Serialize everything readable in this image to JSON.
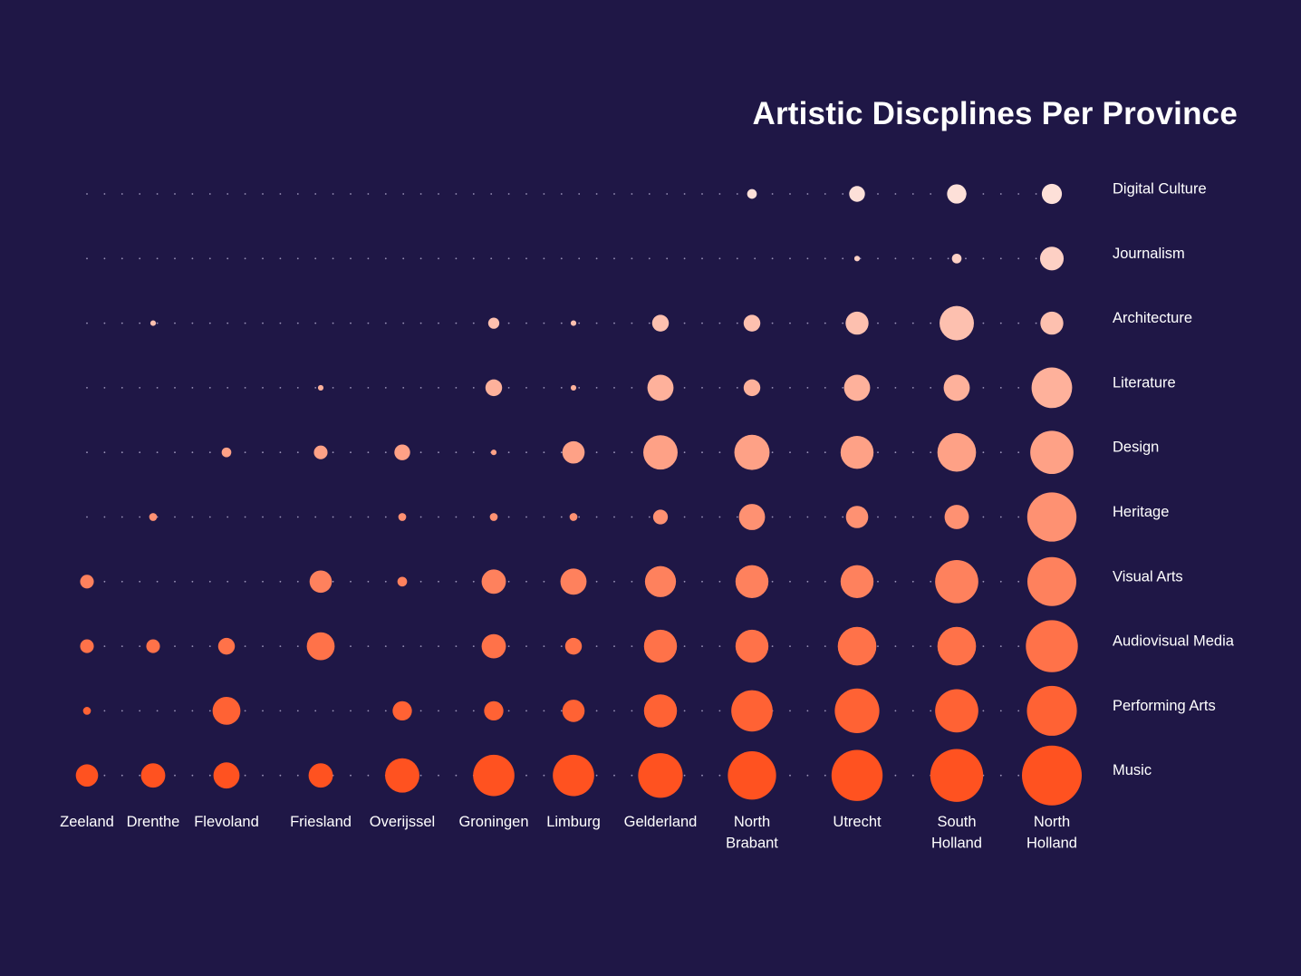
{
  "colors": {
    "background": "#1f1746",
    "dot_grid": "#9a93b8",
    "scale_light": "#fde0d8",
    "scale_dark": "#ff5220",
    "text": "#ffffff"
  },
  "chart_data": {
    "type": "bubble-matrix",
    "title": "Artistic Discplines Per Province",
    "columns": [
      "Zeeland",
      "Drenthe",
      "Flevoland",
      "Friesland",
      "Overijssel",
      "Groningen",
      "Limburg",
      "Gelderland",
      "North Brabant",
      "Utrecht",
      "South Holland",
      "North Holland"
    ],
    "rows": [
      "Digital Culture",
      "Journalism",
      "Architecture",
      "Literature",
      "Design",
      "Heritage",
      "Visual Arts",
      "Audiovisual Media",
      "Performing Arts",
      "Music"
    ],
    "values": [
      [
        0,
        0,
        0,
        0,
        0,
        0,
        0,
        0,
        3,
        8,
        12,
        13
      ],
      [
        0,
        0,
        0,
        0,
        0,
        0,
        0,
        0,
        0,
        1,
        3,
        18
      ],
      [
        0,
        1,
        0,
        0,
        0,
        4,
        1,
        9,
        9,
        17,
        38,
        17
      ],
      [
        0,
        0,
        0,
        1,
        0,
        9,
        1,
        22,
        9,
        22,
        22,
        53
      ],
      [
        0,
        0,
        3,
        6,
        8,
        1,
        16,
        38,
        40,
        35,
        48,
        60
      ],
      [
        0,
        2,
        0,
        0,
        2,
        2,
        2,
        7,
        22,
        16,
        19,
        78
      ],
      [
        6,
        0,
        0,
        16,
        3,
        19,
        22,
        31,
        35,
        35,
        60,
        77
      ],
      [
        6,
        6,
        9,
        25,
        0,
        19,
        9,
        35,
        35,
        48,
        48,
        87
      ],
      [
        2,
        0,
        25,
        0,
        12,
        12,
        16,
        35,
        55,
        64,
        60,
        80
      ],
      [
        16,
        19,
        22,
        19,
        38,
        55,
        55,
        64,
        75,
        84,
        90,
        115
      ]
    ],
    "grid": "dotted"
  }
}
